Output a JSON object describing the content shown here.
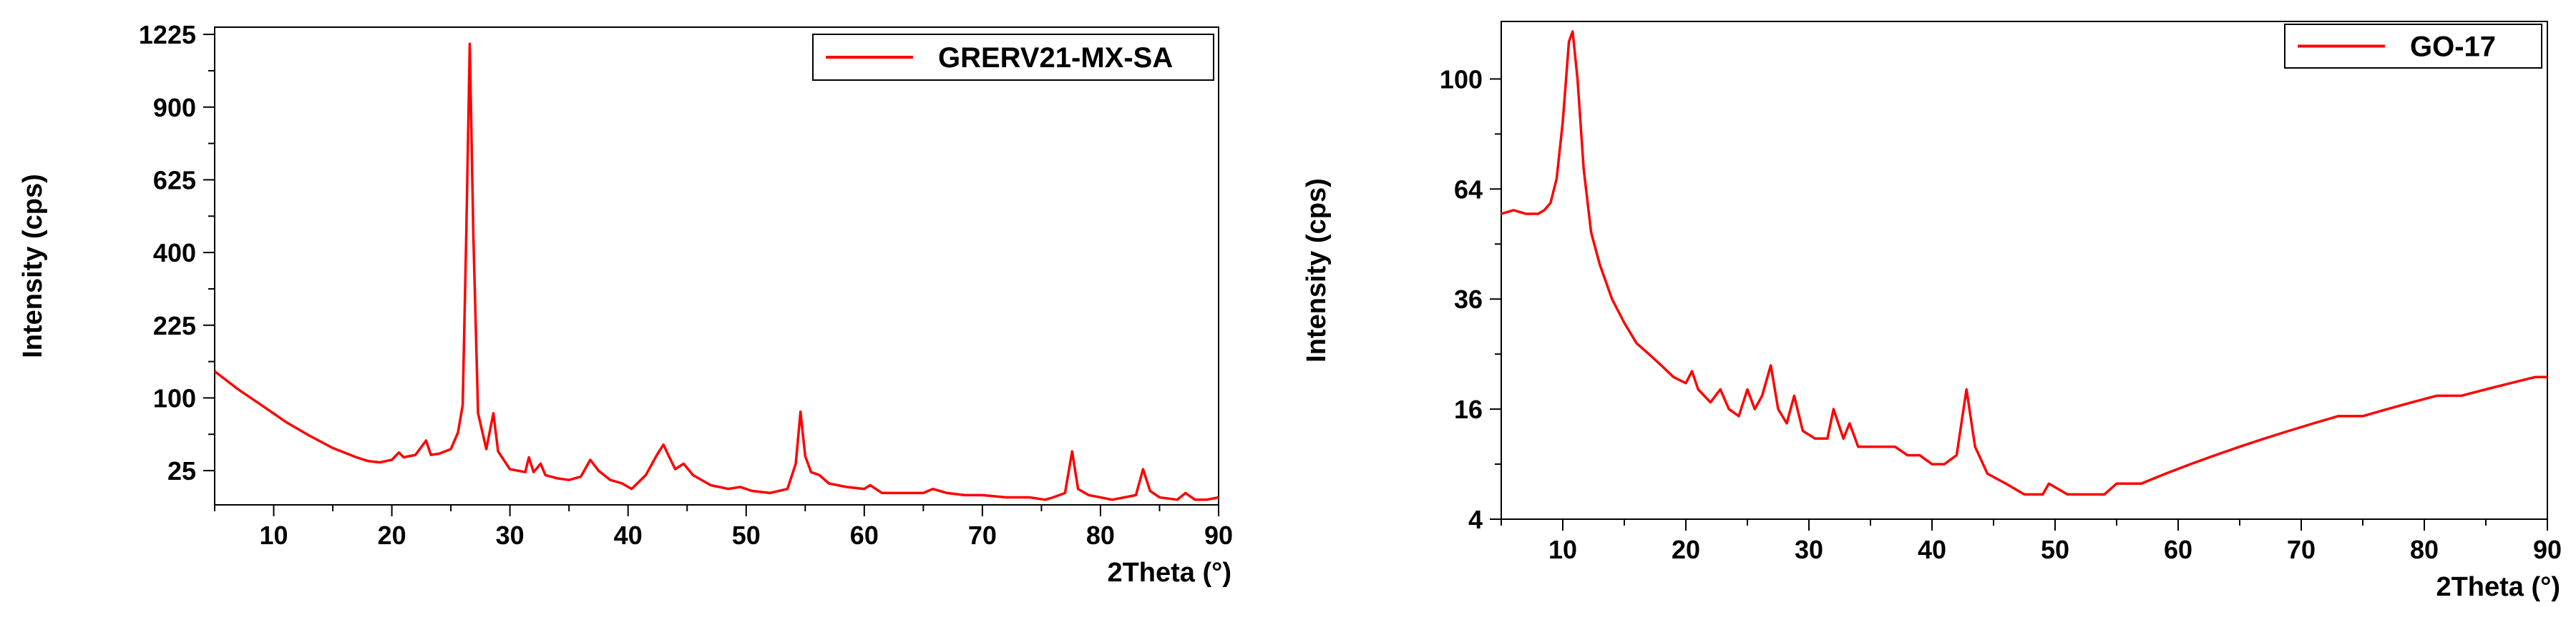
{
  "chart_data": [
    {
      "type": "line",
      "ylabel": "Intensity (cps)",
      "xlabel": "2Theta (°)",
      "x_ticks": [
        10,
        20,
        30,
        40,
        50,
        60,
        70,
        80,
        90
      ],
      "y_ticks": [
        25,
        100,
        225,
        400,
        625,
        900,
        1225
      ],
      "xlim": [
        5,
        90
      ],
      "ylim": [
        7,
        1260
      ],
      "y_scale": "sqrt",
      "grid": false,
      "legend_position": "top-right",
      "series": [
        {
          "name": "GRERV21-MX-SA",
          "color": "#ff0000",
          "x": [
            5,
            7,
            9,
            11,
            13,
            15,
            17,
            18,
            19,
            20,
            20.6,
            21,
            22,
            22.9,
            23.3,
            24,
            25,
            25.6,
            26,
            26.3,
            26.6,
            26.9,
            27.3,
            28,
            28.6,
            29,
            30,
            31.3,
            31.6,
            32,
            32.6,
            33,
            34,
            35,
            36,
            36.8,
            37.5,
            38.5,
            39.5,
            40.3,
            41.5,
            42.5,
            43,
            43.5,
            44,
            44.7,
            45.5,
            47,
            48.5,
            49.5,
            50.5,
            52,
            53.5,
            54.2,
            54.6,
            55,
            55.5,
            56.2,
            57,
            58.5,
            60,
            60.5,
            61.5,
            63,
            65,
            65.8,
            67,
            68.5,
            70,
            72,
            74,
            75.3,
            76,
            77,
            77.6,
            78.1,
            79,
            81,
            83,
            83.6,
            84.2,
            85,
            86.5,
            87.2,
            88,
            89,
            90
          ],
          "y": [
            140,
            112,
            90,
            70,
            55,
            43,
            35,
            32,
            31,
            33,
            39,
            35,
            37,
            50,
            37,
            38,
            42,
            58,
            90,
            450,
            1180,
            450,
            80,
            42,
            80,
            40,
            26,
            24,
            35,
            24,
            30,
            22,
            20,
            19,
            21,
            33,
            25,
            19,
            17,
            14,
            22,
            38,
            46,
            35,
            26,
            30,
            22,
            16,
            14,
            15,
            13,
            12,
            14,
            30,
            82,
            36,
            24,
            22,
            17,
            15,
            14,
            16,
            12,
            12,
            12,
            14,
            12,
            11,
            11,
            10,
            10,
            9,
            10,
            12,
            40,
            14,
            11,
            9,
            11,
            26,
            13,
            10,
            9,
            12,
            9,
            9,
            10
          ]
        }
      ]
    },
    {
      "type": "line",
      "ylabel": "Intensity (cps)",
      "xlabel": "2Theta (°)",
      "x_ticks": [
        10,
        20,
        30,
        40,
        50,
        60,
        70,
        80,
        90
      ],
      "y_ticks": [
        4,
        16,
        36,
        64,
        100
      ],
      "xlim": [
        5,
        90
      ],
      "ylim": [
        4,
        122
      ],
      "y_scale": "sqrt",
      "grid": false,
      "legend_position": "top-right",
      "series": [
        {
          "name": "GO-17",
          "color": "#ff0000",
          "x": [
            5,
            6,
            7,
            8,
            8.5,
            9,
            9.5,
            10,
            10.5,
            10.8,
            11.2,
            11.7,
            12.3,
            13,
            14,
            15,
            16,
            17,
            18,
            19,
            20,
            20.5,
            21,
            22,
            22.8,
            23.5,
            24.3,
            25,
            25.6,
            26.2,
            26.9,
            27.5,
            28.2,
            28.8,
            29.5,
            30.5,
            31.5,
            32,
            32.8,
            33.3,
            34,
            35,
            36,
            37,
            38,
            39,
            40,
            41,
            42,
            42.8,
            43.5,
            44.5,
            46,
            47.5,
            49,
            49.5,
            51,
            52.5,
            54,
            55,
            57,
            59,
            61,
            63,
            65,
            67,
            69,
            71,
            73,
            75,
            77,
            79,
            81,
            83,
            85,
            87,
            89,
            90
          ],
          "y": [
            57,
            58,
            57,
            57,
            58,
            60,
            67,
            85,
            114,
            118,
            100,
            70,
            52,
            44,
            36,
            31,
            27,
            25,
            23,
            21,
            20,
            22,
            19,
            17,
            19,
            16,
            15,
            19,
            16,
            18,
            23,
            16,
            14,
            18,
            13,
            12,
            12,
            16,
            12,
            14,
            11,
            11,
            11,
            11,
            10,
            10,
            9,
            9,
            10,
            19,
            11,
            8,
            7,
            6,
            6,
            7,
            6,
            6,
            6,
            7,
            7,
            8,
            9,
            10,
            11,
            12,
            13,
            14,
            15,
            15,
            16,
            17,
            18,
            18,
            19,
            20,
            21,
            21
          ]
        }
      ]
    }
  ]
}
